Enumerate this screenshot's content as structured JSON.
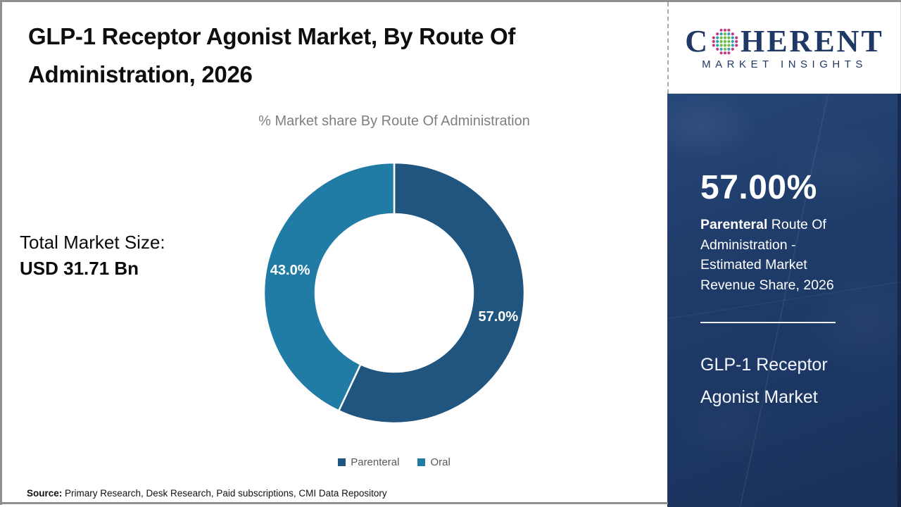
{
  "header": {
    "title_line1": "GLP-1 Receptor Agonist Market, By Route Of",
    "title_line2": "Administration, 2026"
  },
  "logo": {
    "word_start": "C",
    "word_end": "HERENT",
    "subtitle": "MARKET INSIGHTS",
    "globe_icon": "dot-globe-icon",
    "colors": {
      "brand": "#1F3864",
      "globe_green": "#6CBE45",
      "globe_teal": "#2D9FBF",
      "globe_magenta": "#C13B80"
    }
  },
  "chart": {
    "subtitle": "% Market share By Route Of Administration",
    "total_label": "Total Market Size:",
    "total_value": "USD 31.71 Bn"
  },
  "chart_data": {
    "type": "pie",
    "donut": true,
    "title": "% Market share By Route Of Administration",
    "labels": [
      "Parenteral",
      "Oral"
    ],
    "values": [
      57.0,
      43.0
    ],
    "value_labels": [
      "57.0%",
      "43.0%"
    ],
    "colors": [
      "#1F557F",
      "#217CA5"
    ],
    "start_angle_deg": 0,
    "direction": "clockwise",
    "legend_position": "bottom",
    "total_market_size": "USD 31.71 Bn"
  },
  "side_panel": {
    "stat_value": "57.00%",
    "stat_bold": "Parenteral",
    "stat_rest": " Route Of Administration - Estimated Market Revenue Share, 2026",
    "name_line1": "GLP-1 Receptor",
    "name_line2": "Agonist Market",
    "bg_color": "#1E3864"
  },
  "footer": {
    "source_label": "Source:",
    "source_text": " Primary Research, Desk Research, Paid subscriptions, CMI Data Repository"
  }
}
